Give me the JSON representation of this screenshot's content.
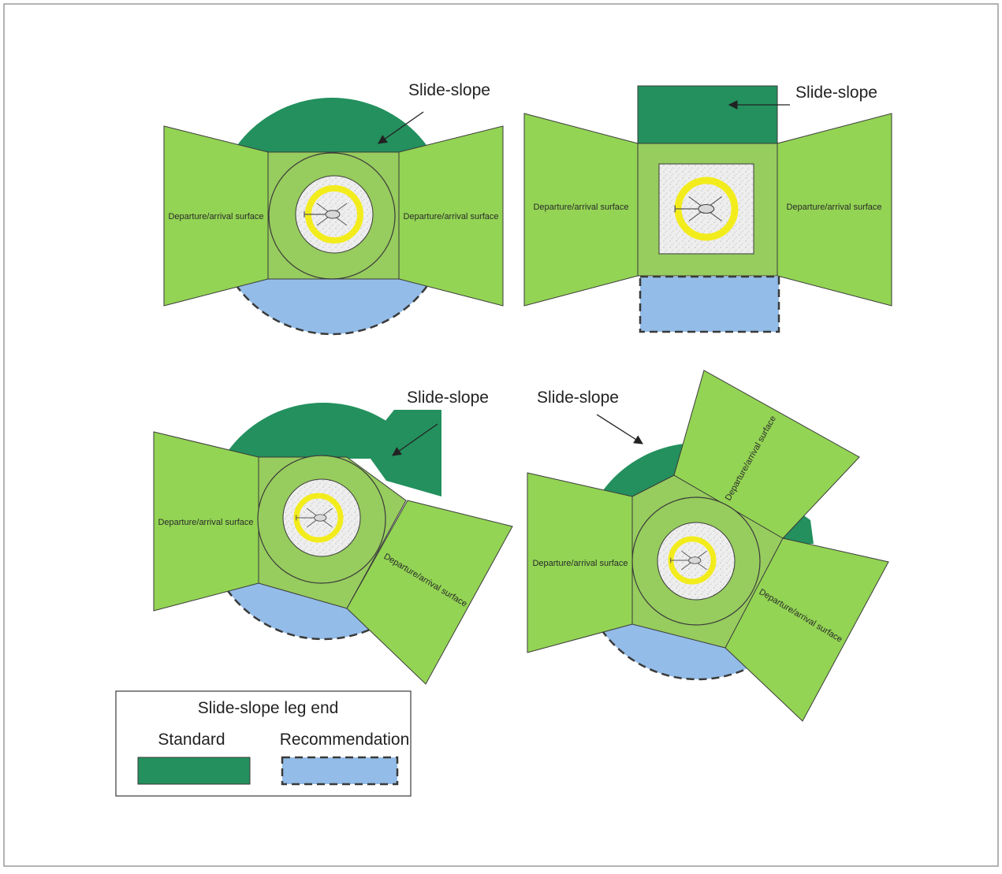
{
  "colors": {
    "surface": "#93d454",
    "fato": "#97cc5e",
    "standard": "#23905e",
    "recommendation": "#93bce8",
    "marking": "#f3ec1c",
    "outline": "#3a3a3a"
  },
  "icons": [
    "helicopter-icon",
    "callout-arrow-icon"
  ],
  "diagrams": [
    {
      "callout": "Slide-slope",
      "surface_left": "Departure/arrival surface",
      "surface_right": "Departure/arrival surface"
    },
    {
      "callout": "Slide-slope",
      "surface_left": "Departure/arrival surface",
      "surface_right": "Departure/arrival surface"
    },
    {
      "callout": "Slide-slope",
      "surface_left": "Departure/arrival surface",
      "surface_right": "Departure/arrival surface"
    },
    {
      "callout": "Slide-slope",
      "surface_left": "Departure/arrival surface",
      "surface_right": "Departure/arrival surface",
      "surface_top": "Departure/arrival surface"
    }
  ],
  "legend": {
    "title": "Slide-slope leg end",
    "standard": "Standard",
    "recommendation": "Recommendation"
  }
}
